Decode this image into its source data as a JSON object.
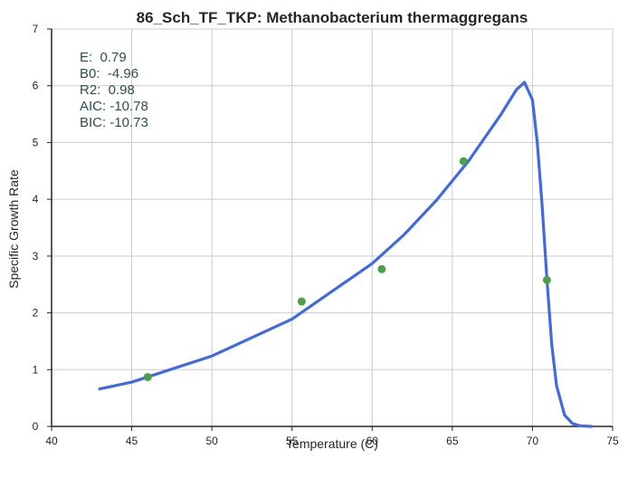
{
  "chart_data": {
    "type": "line",
    "title": "86_Sch_TF_TKP: Methanobacterium thermaggregans",
    "xlabel": "Temperature (C)",
    "ylabel": "Specific Growth Rate",
    "xlim": [
      40,
      75
    ],
    "ylim": [
      0,
      7
    ],
    "xticks": [
      40,
      45,
      50,
      55,
      60,
      65,
      70,
      75
    ],
    "yticks": [
      0,
      1,
      2,
      3,
      4,
      5,
      6,
      7
    ],
    "grid": true,
    "annotations": [
      "E:  0.79",
      "B0:  -4.96",
      "R2:  0.98",
      "AIC: -10.78",
      "BIC: -10.73"
    ],
    "series": [
      {
        "type": "line",
        "color": "#4169e1",
        "x": [
          43,
          45,
          50,
          55,
          60,
          62,
          64,
          66,
          68,
          69,
          69.5,
          70,
          70.3,
          70.6,
          70.9,
          71.2,
          71.5,
          72,
          72.5,
          73,
          73.7
        ],
        "y": [
          0.66,
          0.78,
          1.24,
          1.89,
          2.87,
          3.38,
          3.98,
          4.67,
          5.48,
          5.93,
          6.06,
          5.75,
          5.0,
          3.9,
          2.6,
          1.45,
          0.72,
          0.2,
          0.05,
          0.01,
          0.0
        ]
      },
      {
        "type": "scatter",
        "color": "#4aa14a",
        "x": [
          46.0,
          55.6,
          60.6,
          65.7,
          70.9
        ],
        "y": [
          0.87,
          2.2,
          2.77,
          4.67,
          2.58
        ]
      }
    ]
  }
}
